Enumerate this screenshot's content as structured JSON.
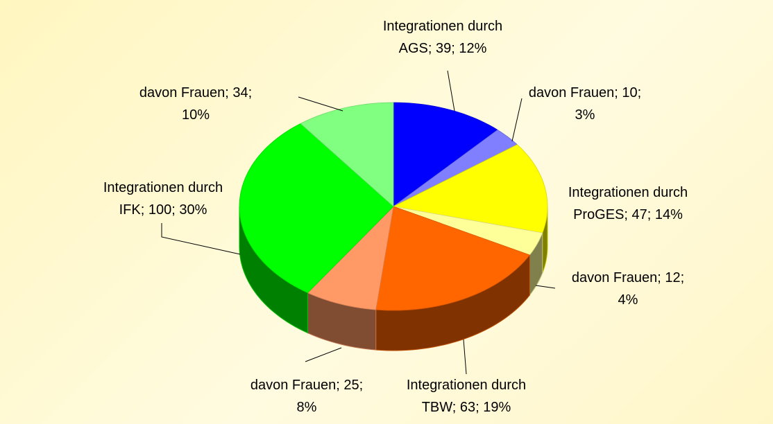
{
  "chart_data": {
    "type": "pie",
    "three_d": true,
    "start_angle": 0,
    "direction": "clockwise",
    "values": [
      39,
      10,
      47,
      12,
      63,
      25,
      100,
      34
    ],
    "value_labels": [
      "Integrationen durch AGS; 39; 12%",
      "davon Frauen; 10; 3%",
      "Integrationen durch ProGES; 47; 14%",
      "davon Frauen; 12; 4%",
      "Integrationen durch TBW; 63; 19%",
      "davon Frauen; 25; 8%",
      "Integrationen durch IFK; 100; 30%",
      "davon Frauen; 34; 10%"
    ],
    "colors": [
      "#0000ff",
      "#7f7fff",
      "#ffff00",
      "#ffff99",
      "#ff6600",
      "#ff9966",
      "#00ff00",
      "#80ff80"
    ]
  }
}
